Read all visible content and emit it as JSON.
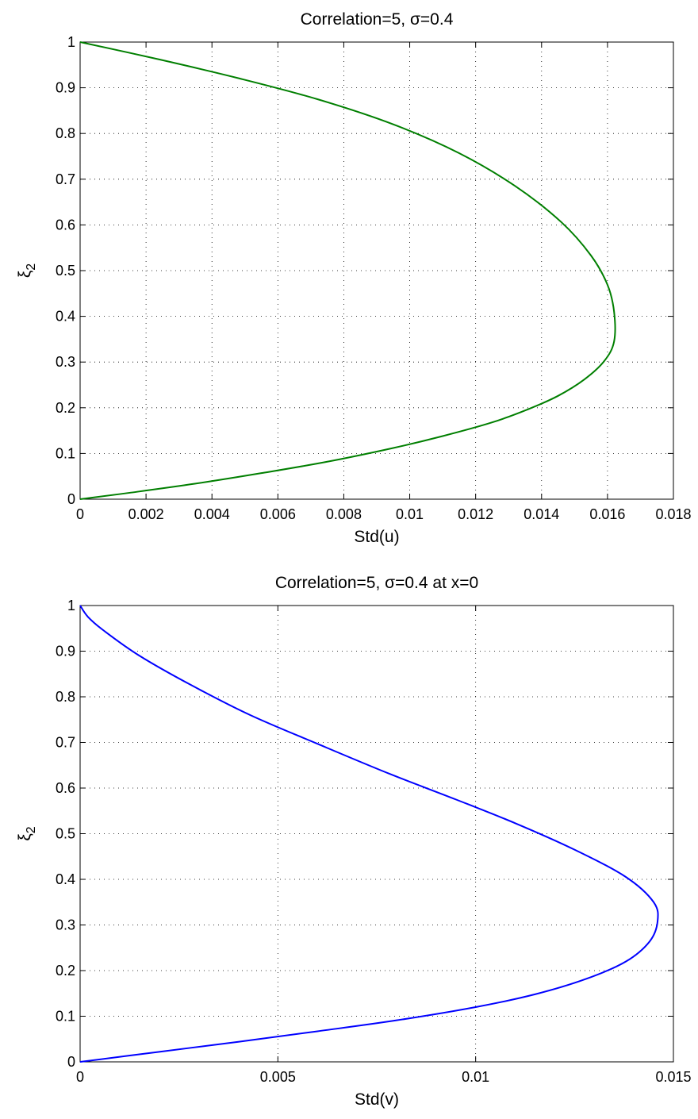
{
  "chart_data": [
    {
      "type": "line",
      "title": "Correlation=5, σ=0.4",
      "xlabel": "Std(u)",
      "ylabel_main": "ξ",
      "ylabel_sub": "2",
      "xlim": [
        0,
        0.018
      ],
      "ylim": [
        0,
        1
      ],
      "grid": true,
      "xticks": [
        "0",
        "0.002",
        "0.004",
        "0.006",
        "0.008",
        "0.01",
        "0.012",
        "0.014",
        "0.016",
        "0.018"
      ],
      "yticks": [
        "0",
        "0.1",
        "0.2",
        "0.3",
        "0.4",
        "0.5",
        "0.6",
        "0.7",
        "0.8",
        "0.9",
        "1"
      ],
      "series": [
        {
          "color": "#007f00",
          "x": [
            0,
            0.0015,
            0.0035,
            0.0055,
            0.0075,
            0.0095,
            0.011,
            0.0125,
            0.0136,
            0.0145,
            0.0153,
            0.0159,
            0.0162,
            0.0162,
            0.016,
            0.0155,
            0.0146,
            0.0132,
            0.0115,
            0.0095,
            0.0072,
            0.0048,
            0.0024,
            0
          ],
          "y": [
            0,
            0.014,
            0.034,
            0.057,
            0.082,
            0.112,
            0.138,
            0.168,
            0.197,
            0.226,
            0.262,
            0.302,
            0.345,
            0.41,
            0.469,
            0.533,
            0.606,
            0.685,
            0.757,
            0.82,
            0.875,
            0.921,
            0.962,
            1.0
          ]
        }
      ]
    },
    {
      "type": "line",
      "title": "Correlation=5, σ=0.4 at x=0",
      "xlabel": "Std(v)",
      "ylabel_main": "ξ",
      "ylabel_sub": "2",
      "xlim": [
        0,
        0.015
      ],
      "ylim": [
        0,
        1
      ],
      "grid": true,
      "xticks": [
        "0",
        "0.005",
        "0.01",
        "0.015"
      ],
      "yticks": [
        "0",
        "0.1",
        "0.2",
        "0.3",
        "0.4",
        "0.5",
        "0.6",
        "0.7",
        "0.8",
        "0.9",
        "1"
      ],
      "series": [
        {
          "color": "#0000ff",
          "x": [
            0,
            0.002,
            0.004,
            0.006,
            0.008,
            0.01,
            0.0115,
            0.0128,
            0.0138,
            0.0144,
            0.0146,
            0.0145,
            0.0138,
            0.0125,
            0.011,
            0.0095,
            0.0078,
            0.006,
            0.0043,
            0.0028,
            0.0015,
            0.0006,
            0.0002,
            0
          ],
          "y": [
            0,
            0.022,
            0.044,
            0.067,
            0.091,
            0.12,
            0.148,
            0.182,
            0.22,
            0.264,
            0.308,
            0.35,
            0.405,
            0.465,
            0.523,
            0.575,
            0.632,
            0.697,
            0.76,
            0.826,
            0.89,
            0.945,
            0.975,
            1.0
          ]
        }
      ]
    }
  ]
}
